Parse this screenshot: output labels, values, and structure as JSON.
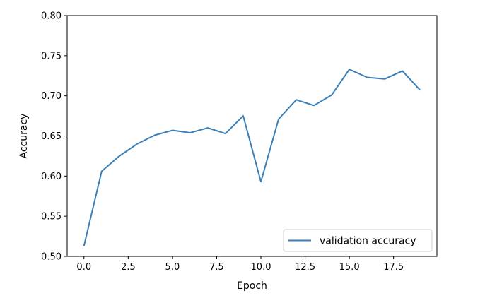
{
  "chart_data": {
    "type": "line",
    "xlabel": "Epoch",
    "ylabel": "Accuracy",
    "xlim": [
      -0.95,
      19.95
    ],
    "ylim": [
      0.5,
      0.8
    ],
    "xticks": [
      "0.0",
      "2.5",
      "5.0",
      "7.5",
      "10.0",
      "12.5",
      "15.0",
      "17.5"
    ],
    "yticks": [
      "0.50",
      "0.55",
      "0.60",
      "0.65",
      "0.70",
      "0.75",
      "0.80"
    ],
    "grid": false,
    "legend_position": "lower-right",
    "series": [
      {
        "name": "validation accuracy",
        "color": "#3a7fb8",
        "x": [
          0,
          1,
          2,
          3,
          4,
          5,
          6,
          7,
          8,
          9,
          10,
          11,
          12,
          13,
          14,
          15,
          16,
          17,
          18,
          19
        ],
        "y": [
          0.513,
          0.606,
          0.625,
          0.64,
          0.651,
          0.657,
          0.654,
          0.66,
          0.653,
          0.675,
          0.593,
          0.671,
          0.695,
          0.688,
          0.701,
          0.733,
          0.723,
          0.721,
          0.731,
          0.707
        ]
      }
    ]
  }
}
